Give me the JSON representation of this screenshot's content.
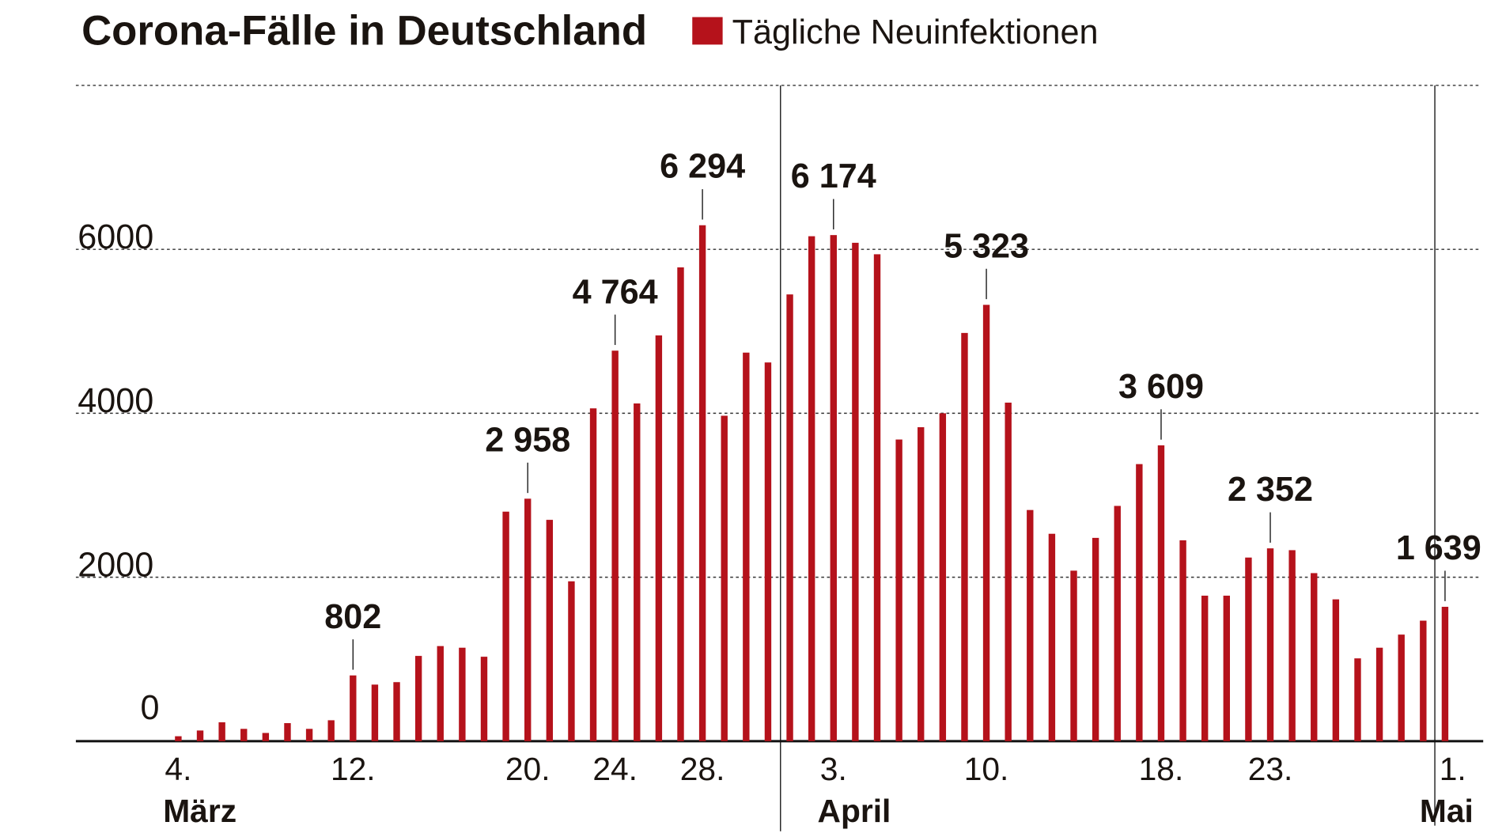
{
  "chart_data": {
    "type": "bar",
    "title": "Corona-Fälle in Deutschland",
    "legend": {
      "label": "Tägliche Neuinfektionen",
      "placement": "top"
    },
    "bar_color": "#b5121b",
    "ylim": [
      0,
      8000
    ],
    "yticks": [
      "0",
      "2000",
      "4000",
      "6000"
    ],
    "grid": true,
    "x_start": "2020-03-04",
    "x_end": "2020-05-01",
    "values": [
      60,
      130,
      230,
      150,
      100,
      220,
      150,
      255,
      802,
      690,
      720,
      1040,
      1160,
      1140,
      1030,
      2800,
      2958,
      2700,
      1950,
      4060,
      4764,
      4120,
      4950,
      5780,
      6294,
      3970,
      4740,
      4620,
      5450,
      6160,
      6174,
      6080,
      5940,
      3680,
      3830,
      4000,
      4980,
      5323,
      4130,
      2820,
      2530,
      2080,
      2480,
      2870,
      3380,
      3609,
      2450,
      1775,
      1775,
      2240,
      2352,
      2330,
      2050,
      1730,
      1010,
      1140,
      1300,
      1470,
      1639
    ],
    "xticks": [
      {
        "index": 0,
        "label": "4."
      },
      {
        "index": 8,
        "label": "12."
      },
      {
        "index": 16,
        "label": "20."
      },
      {
        "index": 20,
        "label": "24."
      },
      {
        "index": 24,
        "label": "28."
      },
      {
        "index": 30,
        "label": "3."
      },
      {
        "index": 37,
        "label": "10."
      },
      {
        "index": 45,
        "label": "18."
      },
      {
        "index": 50,
        "label": "23."
      },
      {
        "index": 58,
        "label": "1."
      }
    ],
    "months": [
      {
        "index": 0,
        "label": "März"
      },
      {
        "index": 30,
        "label": "April"
      },
      {
        "index": 58,
        "label": "Mai"
      }
    ],
    "annotations": [
      {
        "index": 8,
        "label": "802"
      },
      {
        "index": 16,
        "label": "2 958"
      },
      {
        "index": 20,
        "label": "4 764"
      },
      {
        "index": 24,
        "label": "6 294"
      },
      {
        "index": 30,
        "label": "6 174"
      },
      {
        "index": 37,
        "label": "5 323"
      },
      {
        "index": 45,
        "label": "3 609"
      },
      {
        "index": 50,
        "label": "2 352"
      },
      {
        "index": 58,
        "label": "1 639"
      }
    ]
  }
}
